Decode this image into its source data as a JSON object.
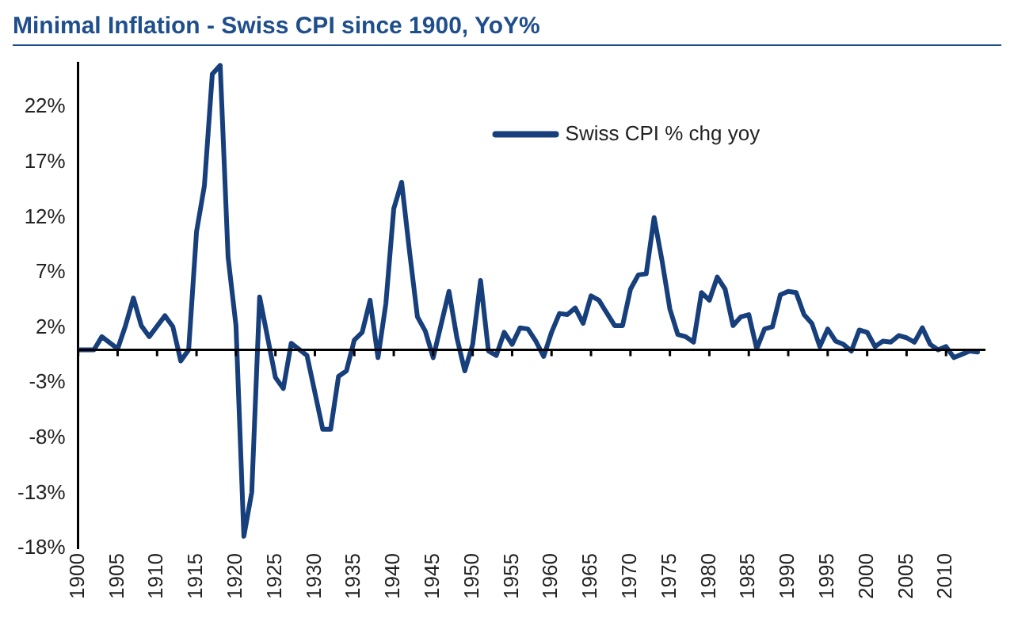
{
  "chart_data": {
    "type": "line",
    "title": "Minimal Inflation - Swiss CPI since 1900, YoY%",
    "x": [
      1900,
      1902,
      1903,
      1905,
      1906,
      1907,
      1908,
      1909,
      1911,
      1912,
      1913,
      1914,
      1915,
      1916,
      1917,
      1918,
      1919,
      1920,
      1921,
      1922,
      1923,
      1925,
      1926,
      1927,
      1929,
      1931,
      1932,
      1933,
      1934,
      1935,
      1936,
      1937,
      1938,
      1939,
      1940,
      1941,
      1942,
      1943,
      1944,
      1945,
      1947,
      1948,
      1949,
      1950,
      1951,
      1952,
      1953,
      1954,
      1955,
      1956,
      1957,
      1958,
      1959,
      1960,
      1961,
      1962,
      1963,
      1964,
      1965,
      1966,
      1968,
      1969,
      1970,
      1971,
      1972,
      1973,
      1974,
      1975,
      1976,
      1977,
      1978,
      1979,
      1980,
      1981,
      1982,
      1983,
      1984,
      1985,
      1986,
      1987,
      1988,
      1989,
      1990,
      1991,
      1992,
      1993,
      1994,
      1995,
      1996,
      1997,
      1998,
      1999,
      2000,
      2001,
      2002,
      2003,
      2004,
      2005,
      2006,
      2007,
      2008,
      2009,
      2010,
      2011,
      2012,
      2013,
      2014
    ],
    "series": [
      {
        "name": "Swiss CPI % chg yoy",
        "color": "#173f7c",
        "values": [
          0,
          0,
          1.2,
          0.1,
          2.2,
          4.7,
          2.2,
          1.2,
          3.1,
          2.1,
          -1,
          0,
          10.7,
          14.9,
          25,
          25.8,
          8.4,
          2.2,
          -16.9,
          -12.9,
          4.8,
          -2.5,
          -3.5,
          0.6,
          -0.5,
          -7.2,
          -7.2,
          -2.4,
          -1.9,
          0.9,
          1.6,
          4.5,
          -0.7,
          4.2,
          12.8,
          15.2,
          8.9,
          3,
          1.7,
          -0.7,
          5.3,
          1.1,
          -1.9,
          0.5,
          6.3,
          -0.1,
          -0.5,
          1.6,
          0.5,
          2,
          1.9,
          0.8,
          -0.6,
          1.6,
          3.3,
          3.2,
          3.8,
          2.4,
          4.9,
          4.5,
          2.2,
          2.2,
          5.5,
          6.8,
          6.9,
          12,
          8.1,
          3.7,
          1.4,
          1.2,
          0.7,
          5.2,
          4.5,
          6.6,
          5.5,
          2.2,
          3,
          3.2,
          0.1,
          1.9,
          2.1,
          5,
          5.3,
          5.2,
          3.2,
          2.4,
          0.3,
          1.9,
          0.8,
          0.5,
          -0.1,
          1.8,
          1.6,
          0.3,
          0.8,
          0.7,
          1.3,
          1.1,
          0.7,
          2,
          0.5,
          0,
          0.3,
          -0.7,
          -0.4,
          -0.1,
          -0.2
        ]
      }
    ],
    "xlim": [
      1900,
      2015
    ],
    "xticks": [
      1900,
      1905,
      1910,
      1915,
      1920,
      1925,
      1930,
      1935,
      1940,
      1945,
      1950,
      1955,
      1960,
      1965,
      1970,
      1975,
      1980,
      1985,
      1990,
      1995,
      2000,
      2005,
      2010
    ],
    "ylim": [
      -18,
      26
    ],
    "yticks": [
      {
        "value": -18,
        "label": "-18%"
      },
      {
        "value": -13,
        "label": "-13%"
      },
      {
        "value": -8,
        "label": "-8%"
      },
      {
        "value": -3,
        "label": "-3%"
      },
      {
        "value": 2,
        "label": "2%"
      },
      {
        "value": 7,
        "label": "7%"
      },
      {
        "value": 12,
        "label": "12%"
      },
      {
        "value": 17,
        "label": "17%"
      },
      {
        "value": 22,
        "label": "22%"
      }
    ],
    "legend": "top",
    "grid": false,
    "marker": "none",
    "line_style": "solid"
  }
}
